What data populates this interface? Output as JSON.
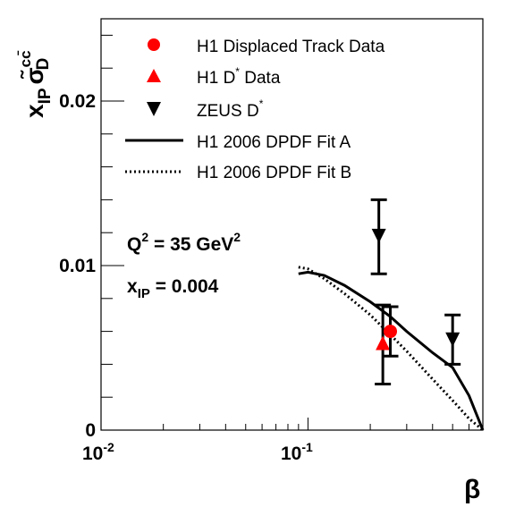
{
  "chart_data": {
    "type": "scatter",
    "xscale": "log",
    "xlim": [
      0.01,
      0.7
    ],
    "ylim": [
      0,
      0.025
    ],
    "xlabel": "β",
    "ylabel_main": "x",
    "ylabel_main_sub": "IP",
    "ylabel_sigma": "σ̃",
    "ylabel_sigma_sup": "cc̄",
    "ylabel_sigma_sub": "D",
    "x_ticks": [
      {
        "value": 0.01,
        "base": "10",
        "exp": "-2"
      },
      {
        "value": 0.1,
        "base": "10",
        "exp": "-1"
      }
    ],
    "y_ticks": [
      {
        "value": 0,
        "label": "0"
      },
      {
        "value": 0.01,
        "label": "0.01"
      },
      {
        "value": 0.02,
        "label": "0.02"
      }
    ],
    "grid": false,
    "legend_position": "top",
    "series": [
      {
        "name": "H1 Displaced Track Data",
        "marker": "circle",
        "color": "#ff0000",
        "points": [
          {
            "x": 0.25,
            "y": 0.006,
            "ylow": 0.0045,
            "yhigh": 0.0075
          }
        ]
      },
      {
        "name": "H1 D",
        "name_sup": "*",
        "name_tail": " Data",
        "marker": "triangle-up",
        "color": "#ff0000",
        "points": [
          {
            "x": 0.23,
            "y": 0.0053,
            "ylow": 0.0028,
            "yhigh": 0.0076
          }
        ]
      },
      {
        "name": "ZEUS D",
        "name_sup": "*",
        "marker": "triangle-down",
        "color": "#000000",
        "points": [
          {
            "x": 0.22,
            "y": 0.0118,
            "ylow": 0.0095,
            "yhigh": 0.014
          },
          {
            "x": 0.5,
            "y": 0.0055,
            "ylow": 0.004,
            "yhigh": 0.007
          }
        ]
      },
      {
        "name": "H1 2006 DPDF Fit A",
        "style": "solid",
        "color": "#000000",
        "points": [
          {
            "x": 0.09,
            "y": 0.0095
          },
          {
            "x": 0.1,
            "y": 0.0096
          },
          {
            "x": 0.12,
            "y": 0.0094
          },
          {
            "x": 0.15,
            "y": 0.0088
          },
          {
            "x": 0.2,
            "y": 0.0078
          },
          {
            "x": 0.25,
            "y": 0.0069
          },
          {
            "x": 0.3,
            "y": 0.006
          },
          {
            "x": 0.4,
            "y": 0.0047
          },
          {
            "x": 0.5,
            "y": 0.0038
          },
          {
            "x": 0.6,
            "y": 0.0021
          },
          {
            "x": 0.66,
            "y": 0.0008
          },
          {
            "x": 0.7,
            "y": 0
          }
        ]
      },
      {
        "name": "H1 2006 DPDF Fit B",
        "style": "dotted",
        "color": "#000000",
        "points": [
          {
            "x": 0.09,
            "y": 0.0099
          },
          {
            "x": 0.1,
            "y": 0.0098
          },
          {
            "x": 0.12,
            "y": 0.0092
          },
          {
            "x": 0.15,
            "y": 0.0083
          },
          {
            "x": 0.2,
            "y": 0.007
          },
          {
            "x": 0.25,
            "y": 0.0058
          },
          {
            "x": 0.3,
            "y": 0.0048
          },
          {
            "x": 0.4,
            "y": 0.0031
          },
          {
            "x": 0.5,
            "y": 0.0018
          },
          {
            "x": 0.6,
            "y": 0.0007
          },
          {
            "x": 0.7,
            "y": 0
          }
        ]
      }
    ],
    "annotations": {
      "q2_prefix": "Q",
      "q2_sup": "2",
      "q2_mid": " = 35 GeV",
      "q2_unit_sup": "2",
      "xip_prefix": "x",
      "xip_sub": "IP",
      "xip_value": " = 0.004"
    }
  }
}
